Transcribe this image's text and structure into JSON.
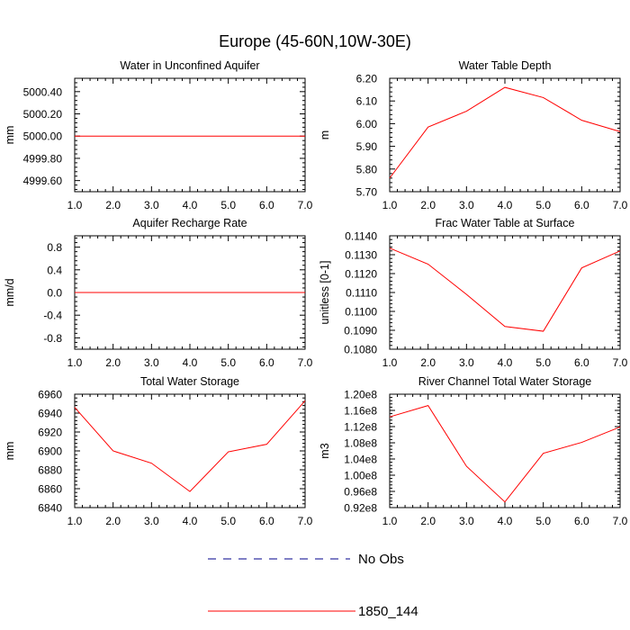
{
  "figure_title": "Europe (45-60N,10W-30E)",
  "legend": [
    {
      "label": "No Obs",
      "color": "#00008B",
      "dash": true
    },
    {
      "label": "1850_144",
      "color": "#ff0000",
      "dash": false
    }
  ],
  "chart_data": [
    {
      "type": "line",
      "title": "Water in Unconfined Aquifer",
      "ylabel": "mm",
      "x": [
        1,
        2,
        3,
        4,
        5,
        6,
        7
      ],
      "xlim": [
        1,
        7
      ],
      "xticks": [
        "1.0",
        "2.0",
        "3.0",
        "4.0",
        "5.0",
        "6.0",
        "7.0"
      ],
      "ylim": [
        4999.5,
        5000.52
      ],
      "yticks": [
        {
          "v": 4999.6,
          "label": "4999.60"
        },
        {
          "v": 4999.8,
          "label": "4999.80"
        },
        {
          "v": 5000.0,
          "label": "5000.00"
        },
        {
          "v": 5000.2,
          "label": "5000.20"
        },
        {
          "v": 5000.4,
          "label": "5000.40"
        }
      ],
      "series": [
        {
          "name": "1850_144",
          "color": "#ff0000",
          "values": [
            5000,
            5000,
            5000,
            5000,
            5000,
            5000,
            5000
          ]
        }
      ]
    },
    {
      "type": "line",
      "title": "Water Table Depth",
      "ylabel": "m",
      "x": [
        1,
        2,
        3,
        4,
        5,
        6,
        7
      ],
      "xlim": [
        1,
        7
      ],
      "xticks": [
        "1.0",
        "2.0",
        "3.0",
        "4.0",
        "5.0",
        "6.0",
        "7.0"
      ],
      "ylim": [
        5.7,
        6.2
      ],
      "yticks": [
        {
          "v": 5.7,
          "label": "5.70"
        },
        {
          "v": 5.8,
          "label": "5.80"
        },
        {
          "v": 5.9,
          "label": "5.90"
        },
        {
          "v": 6.0,
          "label": "6.00"
        },
        {
          "v": 6.1,
          "label": "6.10"
        },
        {
          "v": 6.2,
          "label": "6.20"
        }
      ],
      "series": [
        {
          "name": "1850_144",
          "color": "#ff0000",
          "values": [
            5.76,
            5.985,
            6.055,
            6.16,
            6.115,
            6.015,
            5.965
          ]
        }
      ]
    },
    {
      "type": "line",
      "title": "Aquifer Recharge Rate",
      "ylabel": "mm/d",
      "x": [
        1,
        2,
        3,
        4,
        5,
        6,
        7
      ],
      "xlim": [
        1,
        7
      ],
      "xticks": [
        "1.0",
        "2.0",
        "3.0",
        "4.0",
        "5.0",
        "6.0",
        "7.0"
      ],
      "ylim": [
        -1.0,
        1.0
      ],
      "yticks": [
        {
          "v": -0.8,
          "label": "-0.8"
        },
        {
          "v": -0.4,
          "label": "-0.4"
        },
        {
          "v": 0.0,
          "label": "0.0"
        },
        {
          "v": 0.4,
          "label": "0.4"
        },
        {
          "v": 0.8,
          "label": "0.8"
        }
      ],
      "series": [
        {
          "name": "1850_144",
          "color": "#ff0000",
          "values": [
            0,
            0,
            0,
            0,
            0,
            0,
            0
          ]
        }
      ]
    },
    {
      "type": "line",
      "title": "Frac Water Table at Surface",
      "ylabel": "unitless [0-1]",
      "x": [
        1,
        2,
        3,
        4,
        5,
        6,
        7
      ],
      "xlim": [
        1,
        7
      ],
      "xticks": [
        "1.0",
        "2.0",
        "3.0",
        "4.0",
        "5.0",
        "6.0",
        "7.0"
      ],
      "ylim": [
        0.108,
        0.114
      ],
      "yticks": [
        {
          "v": 0.108,
          "label": "0.1080"
        },
        {
          "v": 0.109,
          "label": "0.1090"
        },
        {
          "v": 0.11,
          "label": "0.1100"
        },
        {
          "v": 0.111,
          "label": "0.1110"
        },
        {
          "v": 0.112,
          "label": "0.1120"
        },
        {
          "v": 0.113,
          "label": "0.1130"
        },
        {
          "v": 0.114,
          "label": "0.1140"
        }
      ],
      "series": [
        {
          "name": "1850_144",
          "color": "#ff0000",
          "values": [
            0.11335,
            0.1125,
            0.1109,
            0.1092,
            0.10895,
            0.1123,
            0.1132
          ]
        }
      ]
    },
    {
      "type": "line",
      "title": "Total Water Storage",
      "ylabel": "mm",
      "x": [
        1,
        2,
        3,
        4,
        5,
        6,
        7
      ],
      "xlim": [
        1,
        7
      ],
      "xticks": [
        "1.0",
        "2.0",
        "3.0",
        "4.0",
        "5.0",
        "6.0",
        "7.0"
      ],
      "ylim": [
        6840,
        6960
      ],
      "yticks": [
        {
          "v": 6840,
          "label": "6840"
        },
        {
          "v": 6860,
          "label": "6860"
        },
        {
          "v": 6880,
          "label": "6880"
        },
        {
          "v": 6900,
          "label": "6900"
        },
        {
          "v": 6920,
          "label": "6920"
        },
        {
          "v": 6940,
          "label": "6940"
        },
        {
          "v": 6960,
          "label": "6960"
        }
      ],
      "series": [
        {
          "name": "1850_144",
          "color": "#ff0000",
          "values": [
            6946,
            6900,
            6887,
            6857,
            6899,
            6907,
            6953
          ]
        }
      ]
    },
    {
      "type": "line",
      "title": "River Channel Total Water Storage",
      "ylabel": "m3",
      "x": [
        1,
        2,
        3,
        4,
        5,
        6,
        7
      ],
      "xlim": [
        1,
        7
      ],
      "xticks": [
        "1.0",
        "2.0",
        "3.0",
        "4.0",
        "5.0",
        "6.0",
        "7.0"
      ],
      "ylim": [
        92000000,
        120000000
      ],
      "yticks": [
        {
          "v": 92000000,
          "label": "0.92e8"
        },
        {
          "v": 96000000,
          "label": "0.96e8"
        },
        {
          "v": 100000000,
          "label": "1.00e8"
        },
        {
          "v": 104000000,
          "label": "1.04e8"
        },
        {
          "v": 108000000,
          "label": "1.08e8"
        },
        {
          "v": 112000000,
          "label": "1.12e8"
        },
        {
          "v": 116000000,
          "label": "1.16e8"
        },
        {
          "v": 120000000,
          "label": "1.20e8"
        }
      ],
      "series": [
        {
          "name": "1850_144",
          "color": "#ff0000",
          "values": [
            114400000,
            117200000,
            102200000,
            93400000,
            105400000,
            108100000,
            111900000
          ]
        }
      ]
    }
  ]
}
